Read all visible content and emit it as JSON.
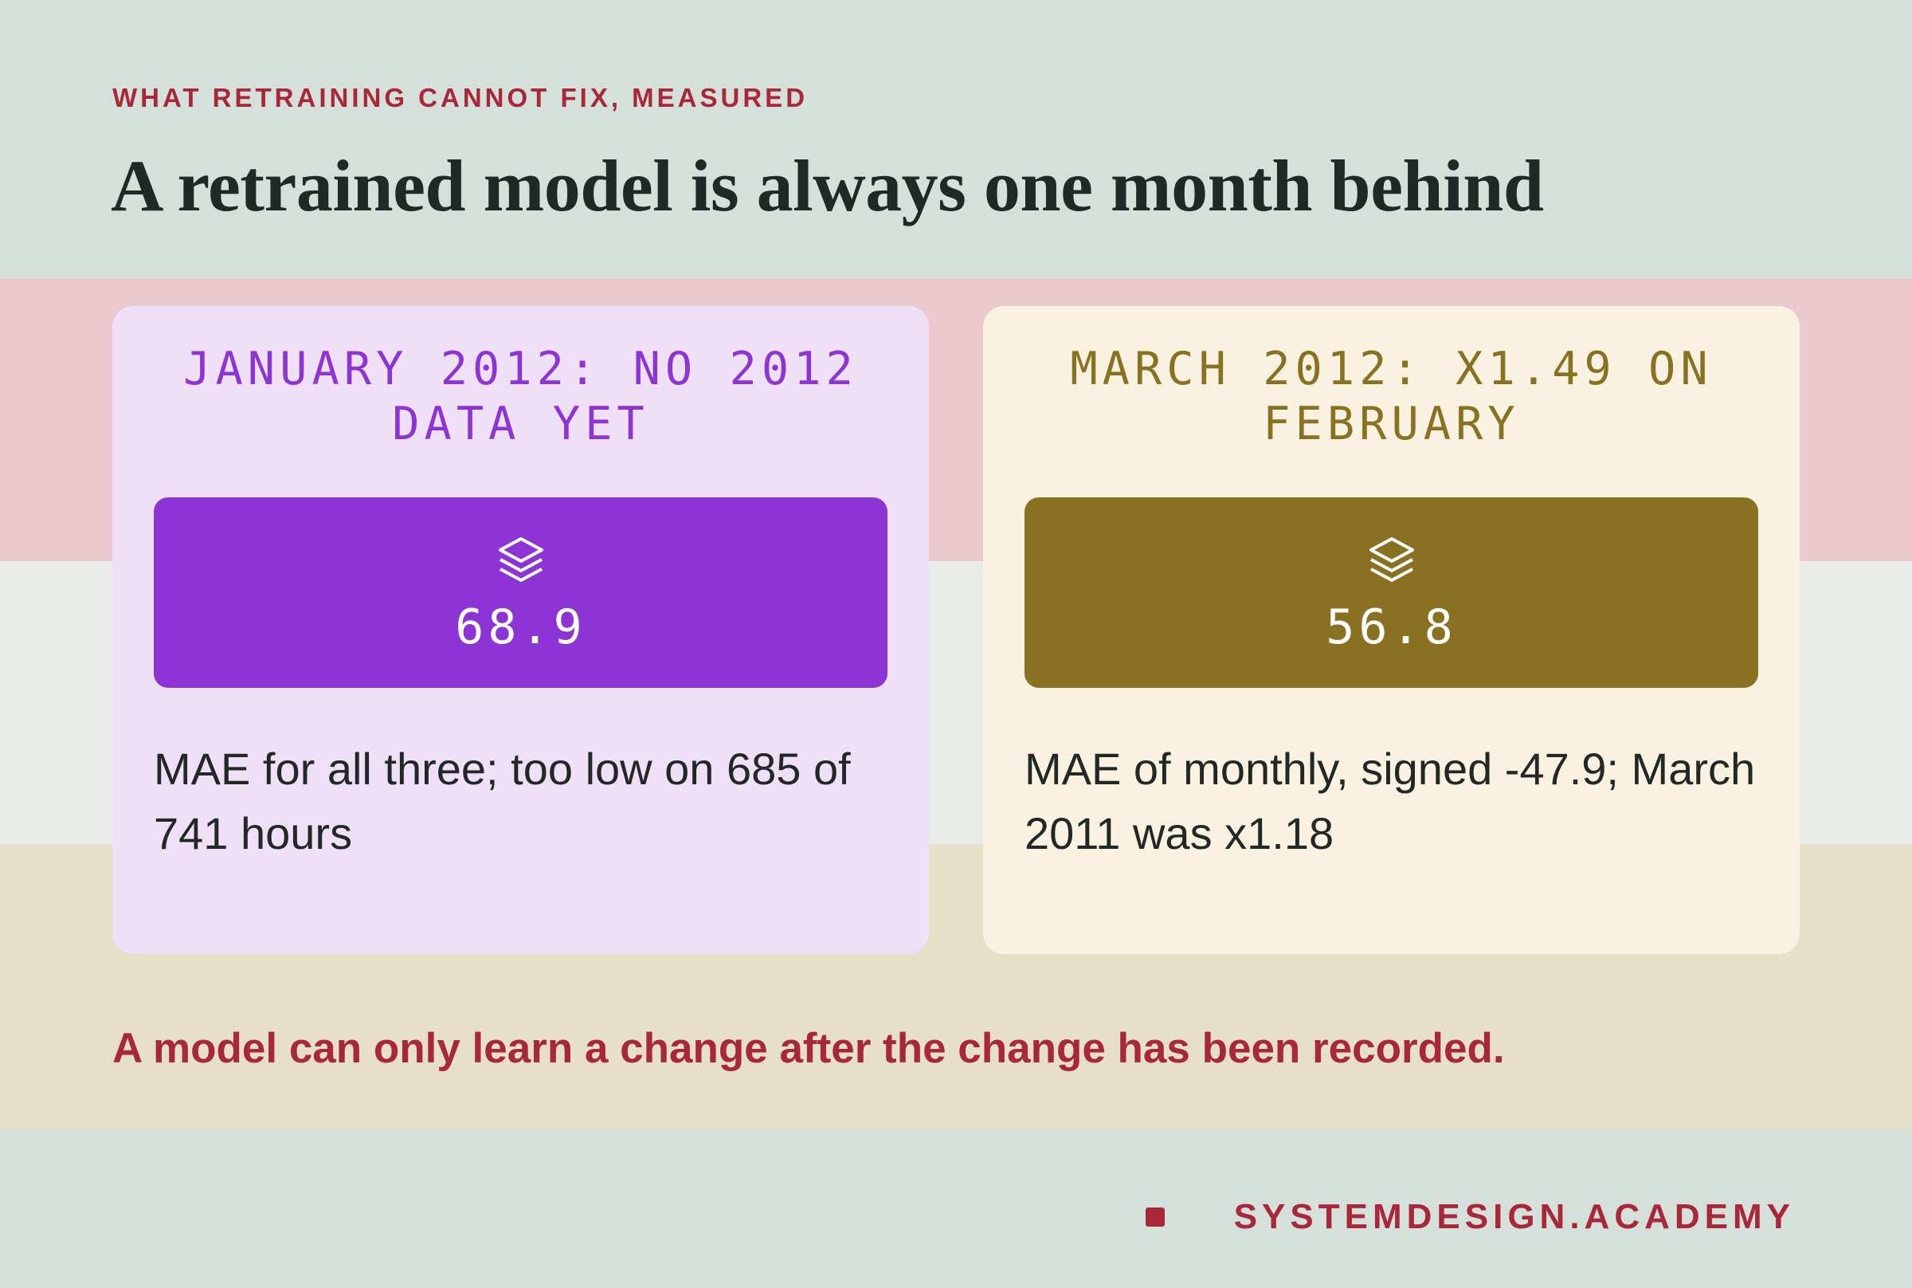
{
  "kicker": "WHAT RETRAINING CANNOT FIX, MEASURED",
  "title": "A retrained model is always one month behind",
  "cards": [
    {
      "title": "JANUARY 2012: NO 2012 DATA YET",
      "value": 68.9,
      "description": "MAE for all three; too low on 685 of 741 hours"
    },
    {
      "title": "MARCH 2012: X1.49 ON FEBRUARY",
      "value": 56.8,
      "description": "MAE of monthly, signed -47.9; March 2011 was x1.18"
    }
  ],
  "note": "A model can only learn a change after the change has been recorded.",
  "brand": "SYSTEMDESIGN.ACADEMY"
}
